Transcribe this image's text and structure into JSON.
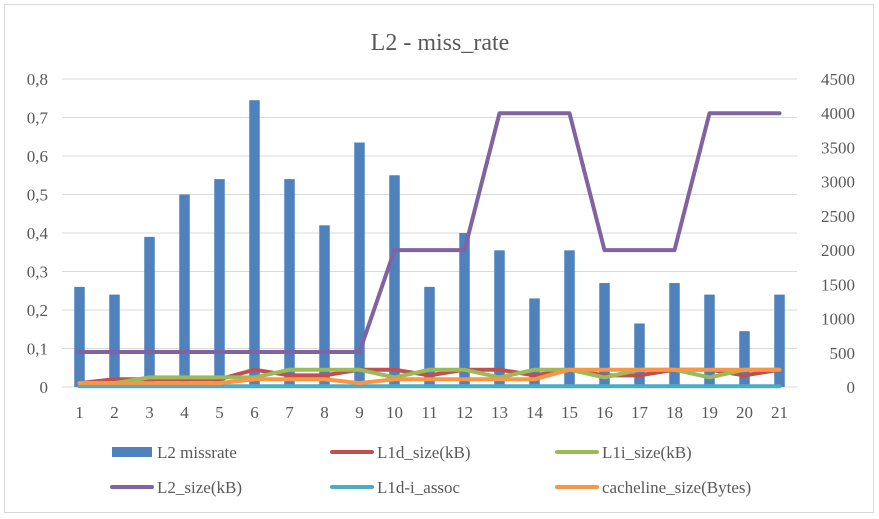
{
  "chart_data": {
    "type": "bar",
    "title": "L2 - miss_rate",
    "categories": [
      "1",
      "2",
      "3",
      "4",
      "5",
      "6",
      "7",
      "8",
      "9",
      "10",
      "11",
      "12",
      "13",
      "14",
      "15",
      "16",
      "17",
      "18",
      "19",
      "20",
      "21"
    ],
    "y_left": {
      "lim": [
        0,
        0.8
      ],
      "ticks": [
        "0",
        "0,1",
        "0,2",
        "0,3",
        "0,4",
        "0,5",
        "0,6",
        "0,7",
        "0,8"
      ]
    },
    "y_right": {
      "lim": [
        0,
        4500
      ],
      "ticks": [
        "0",
        "500",
        "1000",
        "1500",
        "2000",
        "2500",
        "3000",
        "3500",
        "4000",
        "4500"
      ]
    },
    "grid": true,
    "legend_position": "bottom",
    "series": [
      {
        "name": "L2 missrate",
        "type": "bar",
        "axis": "left",
        "color": "#4f81bd",
        "values": [
          0.26,
          0.24,
          0.39,
          0.5,
          0.54,
          0.745,
          0.54,
          0.42,
          0.635,
          0.55,
          0.26,
          0.4,
          0.355,
          0.23,
          0.355,
          0.27,
          0.165,
          0.27,
          0.24,
          0.145,
          0.24
        ]
      },
      {
        "name": "L1d_size(kB)",
        "type": "line",
        "axis": "left",
        "color": "#c0504d",
        "values": [
          0.01,
          0.02,
          0.02,
          0.02,
          0.02,
          0.045,
          0.03,
          0.03,
          0.045,
          0.045,
          0.03,
          0.045,
          0.045,
          0.03,
          0.045,
          0.03,
          0.03,
          0.045,
          0.045,
          0.03,
          0.045
        ]
      },
      {
        "name": "L1i_size(kB)",
        "type": "line",
        "axis": "left",
        "color": "#9bbb59",
        "values": [
          0.01,
          0.01,
          0.025,
          0.025,
          0.025,
          0.025,
          0.045,
          0.045,
          0.045,
          0.025,
          0.045,
          0.045,
          0.025,
          0.045,
          0.045,
          0.025,
          0.045,
          0.045,
          0.025,
          0.045,
          0.045
        ]
      },
      {
        "name": "L2_size(kB)",
        "type": "line",
        "axis": "right",
        "color": "#8064a2",
        "values": [
          512,
          512,
          512,
          512,
          512,
          512,
          512,
          512,
          512,
          2000,
          2000,
          2000,
          4000,
          4000,
          4000,
          2000,
          2000,
          2000,
          4000,
          4000,
          4000
        ]
      },
      {
        "name": "L1d-i_assoc",
        "type": "line",
        "axis": "left",
        "color": "#4bacc6",
        "values": [
          0.002,
          0.002,
          0.002,
          0.002,
          0.002,
          0.002,
          0.002,
          0.002,
          0.002,
          0.002,
          0.002,
          0.002,
          0.002,
          0.002,
          0.002,
          0.002,
          0.002,
          0.002,
          0.002,
          0.002,
          0.002
        ]
      },
      {
        "name": "cacheline_size(Bytes)",
        "type": "line",
        "axis": "left",
        "color": "#f79646",
        "values": [
          0.01,
          0.01,
          0.01,
          0.01,
          0.01,
          0.02,
          0.02,
          0.02,
          0.01,
          0.02,
          0.02,
          0.02,
          0.02,
          0.02,
          0.045,
          0.045,
          0.045,
          0.045,
          0.045,
          0.045,
          0.045
        ]
      }
    ]
  }
}
